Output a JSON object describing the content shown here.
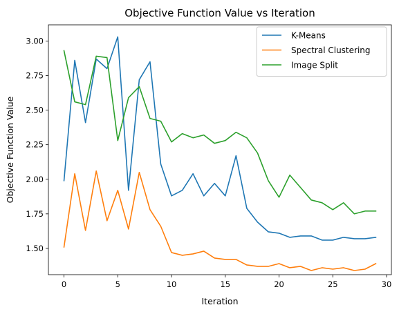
{
  "chart_data": {
    "type": "line",
    "title": "Objective Function Value vs Iteration",
    "xlabel": "Iteration",
    "ylabel": "Objective Function Value",
    "xlim": [
      -1.45,
      30.45
    ],
    "ylim": [
      1.31,
      3.117
    ],
    "xticks": [
      0,
      5,
      10,
      15,
      20,
      25,
      30
    ],
    "yticks": [
      1.5,
      1.75,
      2.0,
      2.25,
      2.5,
      2.75,
      3.0
    ],
    "ytick_labels": [
      "1.50",
      "1.75",
      "2.00",
      "2.25",
      "2.50",
      "2.75",
      "3.00"
    ],
    "grid": false,
    "legend_position": "top-right",
    "x": [
      0,
      1,
      2,
      3,
      4,
      5,
      6,
      7,
      8,
      9,
      10,
      11,
      12,
      13,
      14,
      15,
      16,
      17,
      18,
      19,
      20,
      21,
      22,
      23,
      24,
      25,
      26,
      27,
      28,
      29
    ],
    "series": [
      {
        "name": "K-Means",
        "color": "#1f77b4",
        "values": [
          1.99,
          2.86,
          2.41,
          2.87,
          2.8,
          3.03,
          1.92,
          2.72,
          2.85,
          2.11,
          1.88,
          1.92,
          2.04,
          1.88,
          1.97,
          1.88,
          2.17,
          1.79,
          1.69,
          1.62,
          1.61,
          1.58,
          1.59,
          1.59,
          1.56,
          1.56,
          1.58,
          1.57,
          1.57,
          1.58
        ]
      },
      {
        "name": "Spectral Clustering",
        "color": "#ff7f0e",
        "values": [
          1.51,
          2.04,
          1.63,
          2.06,
          1.7,
          1.92,
          1.64,
          2.05,
          1.78,
          1.66,
          1.47,
          1.45,
          1.46,
          1.48,
          1.43,
          1.42,
          1.42,
          1.38,
          1.37,
          1.37,
          1.39,
          1.36,
          1.37,
          1.34,
          1.36,
          1.35,
          1.36,
          1.34,
          1.35,
          1.39
        ]
      },
      {
        "name": "Image Split",
        "color": "#2ca02c",
        "values": [
          2.93,
          2.56,
          2.54,
          2.89,
          2.88,
          2.28,
          2.59,
          2.67,
          2.44,
          2.42,
          2.27,
          2.33,
          2.3,
          2.32,
          2.26,
          2.28,
          2.34,
          2.3,
          2.19,
          1.99,
          1.87,
          2.03,
          1.94,
          1.85,
          1.83,
          1.78,
          1.83,
          1.75,
          1.77,
          1.77
        ]
      }
    ]
  }
}
